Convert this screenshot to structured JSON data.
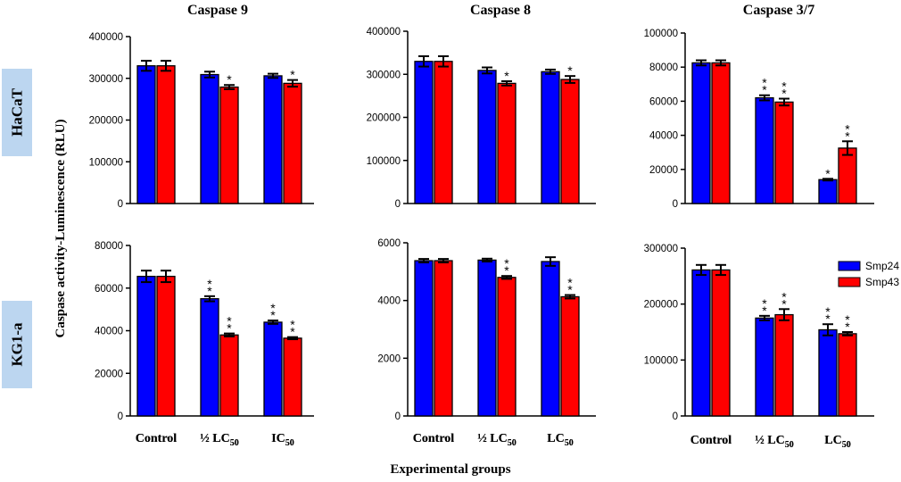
{
  "colors": {
    "smp24": "#0000ff",
    "smp43": "#ff0000",
    "row_label_bg": "#bcd6f0"
  },
  "labels": {
    "ylabel": "Caspase activity-Luminescence (RLU)",
    "xlabel": "Experimental groups",
    "rows": [
      "HaCaT",
      "KG1-a"
    ]
  },
  "legend": {
    "position": "right of bottom-right panel",
    "entries": [
      "Smp24",
      "Smp43"
    ]
  },
  "chart_data": [
    {
      "id": "p1",
      "type": "bar",
      "title": "Caspase 9",
      "row": "HaCaT",
      "categories": [
        "Control",
        "½ LC50",
        "IC50"
      ],
      "ylim": [
        0,
        400000
      ],
      "yticks": [
        0,
        100000,
        200000,
        300000,
        400000
      ],
      "series": [
        {
          "name": "Smp24",
          "values": [
            330000,
            309000,
            306000
          ],
          "errors": [
            12000,
            7000,
            5000
          ],
          "sig": [
            "",
            "",
            ""
          ]
        },
        {
          "name": "Smp43",
          "values": [
            330000,
            279000,
            288000
          ],
          "errors": [
            12000,
            5000,
            8000
          ],
          "sig": [
            "",
            "*",
            "*"
          ]
        }
      ]
    },
    {
      "id": "p2",
      "type": "bar",
      "title": "Caspase 8",
      "row": "HaCaT",
      "categories": [
        "Control",
        "½ LC50",
        "LC50"
      ],
      "ylim": [
        0,
        400000
      ],
      "yticks": [
        0,
        100000,
        200000,
        300000,
        400000
      ],
      "series": [
        {
          "name": "Smp24",
          "values": [
            330000,
            309000,
            306000
          ],
          "errors": [
            12000,
            7000,
            5000
          ],
          "sig": [
            "",
            "",
            ""
          ]
        },
        {
          "name": "Smp43",
          "values": [
            330000,
            279000,
            288000
          ],
          "errors": [
            12000,
            5000,
            8000
          ],
          "sig": [
            "",
            "*",
            "*"
          ]
        }
      ]
    },
    {
      "id": "p3",
      "type": "bar",
      "title": "Caspase 3/7",
      "row": "HaCaT",
      "categories": [
        "Control",
        "½ LC50",
        "LC50"
      ],
      "ylim": [
        0,
        100000
      ],
      "yticks": [
        0,
        20000,
        40000,
        60000,
        80000,
        100000
      ],
      "series": [
        {
          "name": "Smp24",
          "values": [
            82500,
            62000,
            14000
          ],
          "errors": [
            1500,
            1500,
            500
          ],
          "sig": [
            "",
            "**",
            "*"
          ]
        },
        {
          "name": "Smp43",
          "values": [
            82500,
            59500,
            32500
          ],
          "errors": [
            1500,
            2000,
            4000
          ],
          "sig": [
            "",
            "**",
            "**"
          ]
        }
      ]
    },
    {
      "id": "p4",
      "type": "bar",
      "title": "",
      "row": "KG1-a",
      "categories": [
        "Control",
        "½ LC50",
        "IC50"
      ],
      "ylim": [
        0,
        80000
      ],
      "yticks": [
        0,
        20000,
        40000,
        60000,
        80000
      ],
      "series": [
        {
          "name": "Smp24",
          "values": [
            65500,
            55000,
            44000
          ],
          "errors": [
            2700,
            1200,
            800
          ],
          "sig": [
            "",
            "**",
            "**"
          ]
        },
        {
          "name": "Smp43",
          "values": [
            65500,
            38000,
            36500
          ],
          "errors": [
            2700,
            700,
            500
          ],
          "sig": [
            "",
            "**",
            "**"
          ]
        }
      ]
    },
    {
      "id": "p5",
      "type": "bar",
      "title": "",
      "row": "KG1-a",
      "categories": [
        "Control",
        "½ LC50",
        "LC50"
      ],
      "ylim": [
        0,
        6000
      ],
      "yticks": [
        0,
        2000,
        4000,
        6000
      ],
      "series": [
        {
          "name": "Smp24",
          "values": [
            5380,
            5400,
            5350
          ],
          "errors": [
            60,
            50,
            150
          ],
          "sig": [
            "",
            "",
            ""
          ]
        },
        {
          "name": "Smp43",
          "values": [
            5380,
            4800,
            4130
          ],
          "errors": [
            60,
            50,
            60
          ],
          "sig": [
            "",
            "**",
            "**"
          ]
        }
      ]
    },
    {
      "id": "p6",
      "type": "bar",
      "title": "",
      "row": "KG1-a",
      "categories": [
        "Control",
        "½ LC50",
        "LC50"
      ],
      "ylim": [
        0,
        300000
      ],
      "yticks": [
        0,
        100000,
        200000,
        300000
      ],
      "series": [
        {
          "name": "Smp24",
          "values": [
            261000,
            175000,
            154000
          ],
          "errors": [
            9000,
            4000,
            10000
          ],
          "sig": [
            "",
            "**",
            "**"
          ]
        },
        {
          "name": "Smp43",
          "values": [
            261000,
            181000,
            147000
          ],
          "errors": [
            9000,
            10000,
            3000
          ],
          "sig": [
            "",
            "**",
            "**"
          ]
        }
      ]
    }
  ]
}
